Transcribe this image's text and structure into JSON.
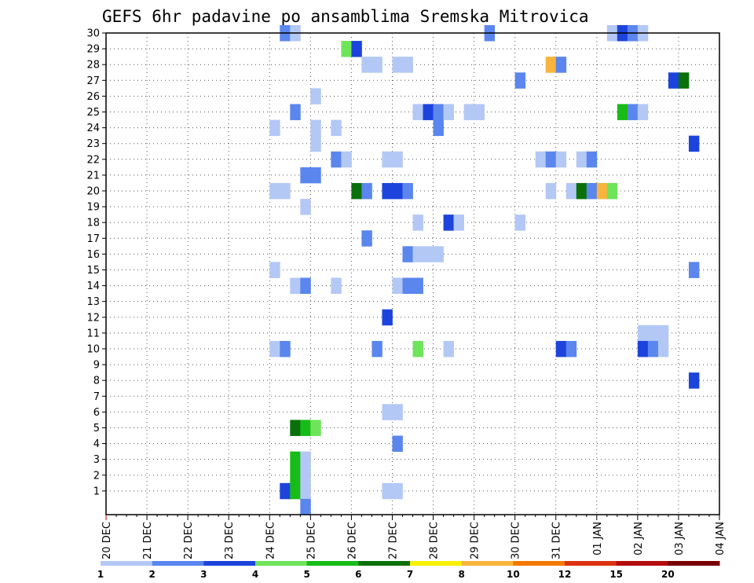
{
  "chart_data": {
    "type": "heatmap",
    "title": "GEFS 6hr padavine po ansamblima Sremska Mitrovica",
    "xlabel": "",
    "ylabel": "",
    "y_ticks": [
      "1",
      "2",
      "3",
      "4",
      "5",
      "6",
      "7",
      "8",
      "9",
      "10",
      "11",
      "12",
      "13",
      "14",
      "15",
      "16",
      "17",
      "18",
      "19",
      "20",
      "21",
      "22",
      "23",
      "24",
      "25",
      "26",
      "27",
      "28",
      "29",
      "30"
    ],
    "x_ticks": [
      "20 DEC",
      "21 DEC",
      "22 DEC",
      "23 DEC",
      "24 DEC",
      "25 DEC",
      "26 DEC",
      "27 DEC",
      "28 DEC",
      "29 DEC",
      "30 DEC",
      "31 DEC",
      "01 JAN",
      "02 JAN",
      "03 JAN",
      "04 JAN"
    ],
    "x_unit": "6-hour steps from 20 DEC 00Z (4 per day)",
    "color_levels": [
      "1",
      "2",
      "3",
      "4",
      "5",
      "6",
      "7",
      "8",
      "10",
      "12",
      "15",
      "20"
    ],
    "color_scale": [
      "#b4c8f6",
      "#5a86ee",
      "#1c44dc",
      "#6ee45a",
      "#18bc18",
      "#0a700a",
      "#f8f000",
      "#f8b43c",
      "#f47a00",
      "#dc3210",
      "#b40c0a",
      "#780000"
    ],
    "cells": [
      [
        17,
        30,
        1
      ],
      [
        18,
        30,
        0
      ],
      [
        37,
        30,
        1
      ],
      [
        49,
        30,
        0
      ],
      [
        50,
        30,
        2
      ],
      [
        51,
        30,
        1
      ],
      [
        52,
        30,
        0
      ],
      [
        23,
        29,
        3
      ],
      [
        24,
        29,
        2
      ],
      [
        25,
        28,
        0
      ],
      [
        26,
        28,
        0
      ],
      [
        28,
        28,
        0
      ],
      [
        29,
        28,
        0
      ],
      [
        43,
        28,
        7
      ],
      [
        44,
        28,
        1
      ],
      [
        40,
        27,
        1
      ],
      [
        55,
        27,
        2
      ],
      [
        56,
        27,
        5
      ],
      [
        20,
        26,
        0
      ],
      [
        18,
        25,
        1
      ],
      [
        30,
        25,
        0
      ],
      [
        31,
        25,
        2
      ],
      [
        32,
        25,
        1
      ],
      [
        33,
        25,
        0
      ],
      [
        35,
        25,
        0
      ],
      [
        36,
        25,
        0
      ],
      [
        50,
        25,
        4
      ],
      [
        51,
        25,
        1
      ],
      [
        52,
        25,
        0
      ],
      [
        16,
        24,
        0
      ],
      [
        20,
        24,
        0
      ],
      [
        22,
        24,
        0
      ],
      [
        32,
        24,
        1
      ],
      [
        20,
        23,
        0
      ],
      [
        57,
        23,
        2
      ],
      [
        22,
        22,
        1
      ],
      [
        23,
        22,
        0
      ],
      [
        27,
        22,
        0
      ],
      [
        28,
        22,
        0
      ],
      [
        42,
        22,
        0
      ],
      [
        43,
        22,
        1
      ],
      [
        44,
        22,
        0
      ],
      [
        46,
        22,
        0
      ],
      [
        47,
        22,
        1
      ],
      [
        19,
        21,
        1
      ],
      [
        20,
        21,
        1
      ],
      [
        16,
        20,
        0
      ],
      [
        17,
        20,
        0
      ],
      [
        24,
        20,
        5
      ],
      [
        25,
        20,
        1
      ],
      [
        27,
        20,
        2
      ],
      [
        28,
        20,
        2
      ],
      [
        29,
        20,
        1
      ],
      [
        43,
        20,
        0
      ],
      [
        45,
        20,
        0
      ],
      [
        46,
        20,
        5
      ],
      [
        47,
        20,
        1
      ],
      [
        48,
        20,
        7
      ],
      [
        49,
        20,
        3
      ],
      [
        19,
        19,
        0
      ],
      [
        30,
        18,
        0
      ],
      [
        33,
        18,
        2
      ],
      [
        34,
        18,
        0
      ],
      [
        40,
        18,
        0
      ],
      [
        25,
        17,
        1
      ],
      [
        29,
        16,
        1
      ],
      [
        30,
        16,
        0
      ],
      [
        31,
        16,
        0
      ],
      [
        32,
        16,
        0
      ],
      [
        16,
        15,
        0
      ],
      [
        57,
        15,
        1
      ],
      [
        18,
        14,
        0
      ],
      [
        19,
        14,
        1
      ],
      [
        22,
        14,
        0
      ],
      [
        28,
        14,
        0
      ],
      [
        29,
        14,
        1
      ],
      [
        30,
        14,
        1
      ],
      [
        27,
        12,
        2
      ],
      [
        52,
        11,
        0
      ],
      [
        53,
        11,
        0
      ],
      [
        54,
        11,
        0
      ],
      [
        16,
        10,
        0
      ],
      [
        17,
        10,
        1
      ],
      [
        26,
        10,
        1
      ],
      [
        30,
        10,
        3
      ],
      [
        33,
        10,
        0
      ],
      [
        44,
        10,
        2
      ],
      [
        45,
        10,
        1
      ],
      [
        52,
        10,
        2
      ],
      [
        53,
        10,
        1
      ],
      [
        54,
        10,
        0
      ],
      [
        57,
        8,
        2
      ],
      [
        27,
        6,
        0
      ],
      [
        28,
        6,
        0
      ],
      [
        18,
        5,
        5
      ],
      [
        19,
        5,
        4
      ],
      [
        20,
        5,
        3
      ],
      [
        28,
        4,
        1
      ],
      [
        18,
        3,
        4
      ],
      [
        19,
        3,
        0
      ],
      [
        18,
        2,
        4
      ],
      [
        19,
        2,
        0
      ],
      [
        17,
        1,
        2
      ],
      [
        18,
        1,
        4
      ],
      [
        19,
        1,
        0
      ],
      [
        27,
        1,
        0
      ],
      [
        28,
        1,
        0
      ],
      [
        19,
        0,
        1
      ]
    ]
  }
}
